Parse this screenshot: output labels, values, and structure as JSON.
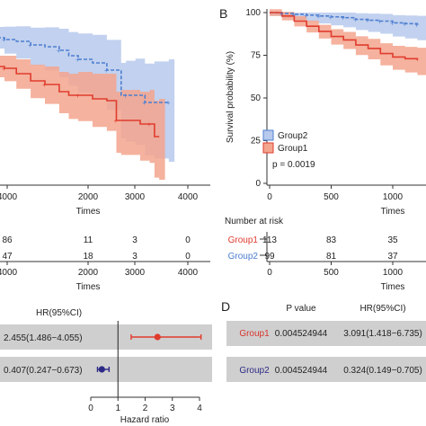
{
  "panel_letters": {
    "b": "B",
    "d": "D"
  },
  "colors": {
    "group1_line": "#e03c2e",
    "group1_band": "#f3a58d",
    "group2_line": "#4d7fd0",
    "group2_band": "#b7c9ec",
    "forest_bg": "#cfcfcf"
  },
  "chart_data": [
    {
      "id": "A-left-km",
      "type": "line",
      "xlabel": "Times",
      "x_ticks": [
        "4000",
        "2000",
        "3000",
        "4000"
      ],
      "xlim": [
        0,
        4000
      ],
      "series": [
        {
          "x": [
            0,
            150,
            400,
            700,
            1000,
            1300,
            1500,
            1700,
            2000,
            2300,
            2600,
            2700,
            2900,
            3100,
            3300,
            3600
          ],
          "y": [
            0.82,
            0.81,
            0.8,
            0.78,
            0.77,
            0.75,
            0.72,
            0.7,
            0.68,
            0.64,
            0.5,
            0.5,
            0.5,
            0.46,
            0.46,
            0.46
          ]
        },
        {
          "x": [
            0,
            150,
            400,
            700,
            1000,
            1300,
            1500,
            1700,
            2000,
            2300,
            2500,
            2600,
            3000,
            3200,
            3300,
            3400
          ],
          "y": [
            0.66,
            0.65,
            0.62,
            0.58,
            0.56,
            0.52,
            0.5,
            0.5,
            0.48,
            0.47,
            0.36,
            0.36,
            0.34,
            0.34,
            0.27,
            0.27
          ]
        }
      ],
      "risk_table": {
        "rows": [
          [
            "86",
            "11",
            "3",
            "0"
          ],
          [
            "47",
            "18",
            "3",
            "0"
          ]
        ],
        "x_ticks": [
          "4000",
          "2000",
          "3000",
          "4000"
        ],
        "xlabel": "Times"
      }
    },
    {
      "id": "B-km",
      "type": "line",
      "xlabel": "Times",
      "ylabel": "Survival probability (%)",
      "y_ticks": [
        "100",
        "75",
        "50",
        "25",
        "0"
      ],
      "x_ticks": [
        "0",
        "500",
        "1000"
      ],
      "ylim": [
        0,
        100
      ],
      "legend": [
        "Group2",
        "Group1"
      ],
      "annotation": "p = 0.0019",
      "series": [
        {
          "name": "Group2",
          "x": [
            0,
            100,
            200,
            300,
            400,
            500,
            600,
            700,
            800,
            900,
            1000,
            1100,
            1200
          ],
          "y": [
            100,
            99.5,
            99,
            98.5,
            98,
            97.5,
            97,
            96,
            95.5,
            95,
            94,
            93.5,
            93
          ]
        },
        {
          "name": "Group1",
          "x": [
            0,
            100,
            200,
            300,
            400,
            500,
            600,
            700,
            800,
            900,
            1000,
            1100,
            1200
          ],
          "y": [
            100,
            98,
            95,
            92,
            89,
            86,
            84,
            81,
            79,
            76,
            74,
            73,
            72
          ]
        }
      ],
      "risk_table": {
        "title": "Number at risk",
        "rows": [
          {
            "label": "Group1",
            "values": [
              "113",
              "83",
              "35"
            ]
          },
          {
            "label": "Group2",
            "values": [
              "99",
              "81",
              "37"
            ]
          }
        ],
        "x_ticks": [
          "0",
          "500",
          "1000"
        ],
        "xlabel": "Times"
      }
    },
    {
      "id": "C-forest",
      "type": "scatter",
      "header": "HR(95%CI)",
      "xlabel": "Hazard ratio",
      "x_ticks": [
        "0",
        "1",
        "2",
        "3",
        "4"
      ],
      "xlim": [
        0,
        4
      ],
      "rows": [
        {
          "text": "2.455(1.486−4.055)",
          "hr": 2.455,
          "lo": 1.486,
          "hi": 4.055
        },
        {
          "text": "0.407(0.247−0.673)",
          "hr": 0.407,
          "lo": 0.247,
          "hi": 0.673
        }
      ]
    },
    {
      "id": "D-table",
      "type": "table",
      "headers": [
        "P value",
        "HR(95%CI)"
      ],
      "rows": [
        {
          "label": "Group1",
          "p": "0.004524944",
          "hr": "3.091(1.418−6.735)"
        },
        {
          "label": "Group2",
          "p": "0.004524944",
          "hr": "0.324(0.149−0.705)"
        }
      ]
    }
  ]
}
